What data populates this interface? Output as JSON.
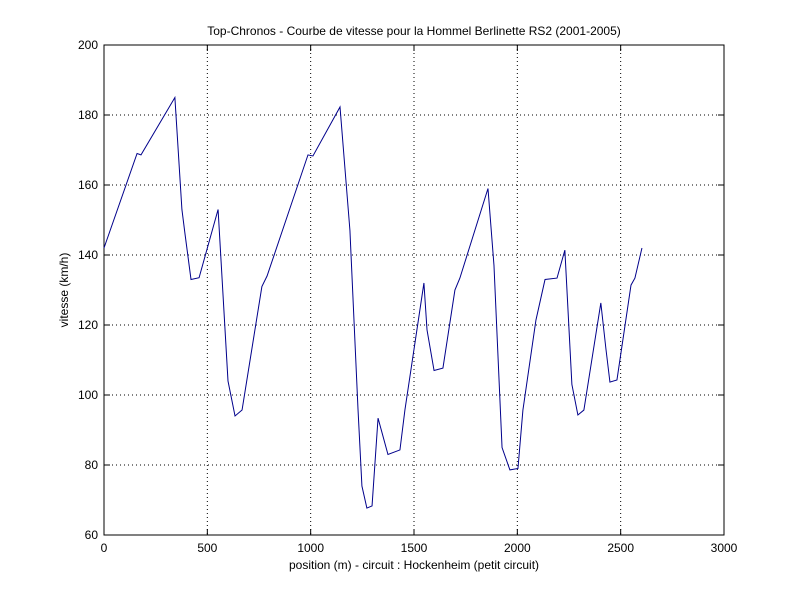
{
  "chart_data": {
    "type": "line",
    "title": "Top-Chronos - Courbe de vitesse pour la Hommel Berlinette RS2 (2001-2005)",
    "xlabel": "position (m) - circuit : Hockenheim (petit circuit)",
    "ylabel": "vitesse (km/h)",
    "x": [
      0,
      160,
      179,
      343,
      377,
      392,
      421,
      460,
      552,
      600,
      634,
      668,
      764,
      789,
      987,
      1011,
      1142,
      1190,
      1229,
      1248,
      1272,
      1297,
      1326,
      1374,
      1432,
      1456,
      1548,
      1563,
      1597,
      1640,
      1698,
      1722,
      1858,
      1887,
      1926,
      1964,
      2003,
      2027,
      2090,
      2134,
      2192,
      2230,
      2264,
      2293,
      2322,
      2404,
      2429,
      2448,
      2482,
      2550,
      2569,
      2603
    ],
    "values": [
      142,
      169,
      168.6,
      185,
      153,
      146,
      133,
      133.5,
      153,
      104,
      94,
      95.7,
      131,
      134,
      168.6,
      168.3,
      182.3,
      147,
      96,
      74,
      67.7,
      68.3,
      93.4,
      83,
      84.3,
      95.7,
      132,
      118.6,
      107,
      107.7,
      130,
      133.4,
      159,
      137,
      85,
      78.6,
      79,
      95.7,
      121.4,
      133,
      133.4,
      141.4,
      103,
      94.3,
      95.7,
      126.3,
      113,
      103.7,
      104.3,
      131.4,
      133.4,
      142
    ],
    "color": "#00008b",
    "xlim": [
      0,
      3000
    ],
    "xticks": [
      0,
      500,
      1000,
      1500,
      2000,
      2500,
      3000
    ],
    "ylim": [
      60,
      200
    ],
    "yticks": [
      60,
      80,
      100,
      120,
      140,
      160,
      180,
      200
    ],
    "grid": true
  }
}
